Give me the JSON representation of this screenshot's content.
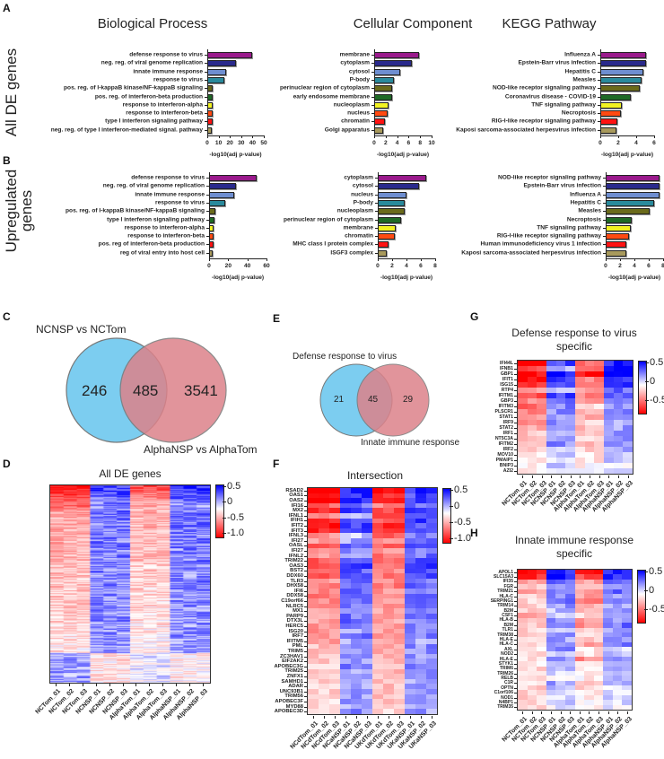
{
  "panels": {
    "A": "A",
    "B": "B",
    "C": "C",
    "D": "D",
    "E": "E",
    "F": "F",
    "G": "G",
    "H": "H"
  },
  "row_titles": {
    "all": "All DE genes",
    "up_line1": "Upregulated",
    "up_line2": "genes"
  },
  "column_titles": {
    "bp": "Biological Process",
    "cc": "Cellular Component",
    "kegg": "KEGG Pathway"
  },
  "colors": {
    "purple": "#9a1a8c",
    "navy": "#2a2a8c",
    "lightblue": "#6e8ed0",
    "teal": "#2a8a9c",
    "olive": "#6a6a1a",
    "green": "#1f6a26",
    "yellow": "#f2f222",
    "orange": "#ff4a12",
    "red": "#ff1212",
    "khaki": "#a89a5c",
    "venn_blue": "#7ccdf0",
    "venn_red": "#dc828a",
    "venn_overlap": "#9c6a80"
  },
  "chart_data": [
    {
      "id": "A-bp",
      "type": "bar",
      "orientation": "horizontal",
      "xlabel": "-log10(adj p-value)",
      "xlim": [
        0,
        50
      ],
      "ticks": [
        0,
        10,
        20,
        30,
        40,
        50
      ],
      "categories": [
        "defense response to virus",
        "neg. reg. of viral genome replication",
        "innate immune response",
        "response to virus",
        "pos. reg. of I-kappaB kinase/NF-kappaB signaling",
        "pos. reg. of interferon-beta production",
        "response to interferon-alpha",
        "response to interferon-beta",
        "type I interferon signaling pathway",
        "neg. reg. of type I interferon-mediated signal. pathway"
      ],
      "values": [
        40,
        25,
        17,
        15,
        5,
        5,
        5,
        5,
        5,
        4
      ]
    },
    {
      "id": "A-cc",
      "type": "bar",
      "orientation": "horizontal",
      "xlabel": "-log10(adj p-value)",
      "xlim": [
        0,
        10
      ],
      "ticks": [
        0,
        2,
        4,
        6,
        8,
        10
      ],
      "categories": [
        "membrane",
        "cytoplasm",
        "cytosol",
        "P-body",
        "perinuclear region of cytoplasm",
        "early endosome membrane",
        "nucleoplasm",
        "nucleus",
        "chromatin",
        "Golgi apparatus"
      ],
      "values": [
        7.8,
        6.5,
        4.6,
        3.4,
        3.2,
        3.1,
        2.5,
        2.4,
        1.9,
        1.6
      ]
    },
    {
      "id": "A-kegg",
      "type": "bar",
      "orientation": "horizontal",
      "xlabel": "-log10(adj p-value)",
      "xlim": [
        0,
        6
      ],
      "ticks": [
        0,
        2,
        4,
        6
      ],
      "categories": [
        "Influenza A",
        "Epstein-Barr virus infection",
        "Hepatitis C",
        "Measles",
        "NOD-like receptor signaling pathway",
        "Coronavirus disease - COVID-19",
        "TNF signaling pathway",
        "Necroptosis",
        "RIG-I-like receptor signaling pathway",
        "Kaposi sarcoma-associated herpesvirus infection"
      ],
      "values": [
        5.1,
        5.1,
        4.8,
        4.6,
        4.4,
        3.4,
        2.4,
        2.3,
        1.9,
        1.8
      ]
    },
    {
      "id": "B-bp",
      "type": "bar",
      "orientation": "horizontal",
      "xlabel": "-log10(adj p-value)",
      "xlim": [
        0,
        60
      ],
      "ticks": [
        0,
        20,
        40,
        60
      ],
      "categories": [
        "defense response to virus",
        "neg. reg. of viral genome replication",
        "innate immune response",
        "response to virus",
        "pos. reg. of I-kappaB kinase/NF-kappaB signaling",
        "type I interferon signaling pathway",
        "response to interferon-alpha",
        "response to interferon-beta",
        "pos. reg of interferon-beta production",
        "reg of viral entry into host cell"
      ],
      "values": [
        50,
        28,
        26,
        17,
        7,
        6,
        5,
        5,
        5,
        4
      ]
    },
    {
      "id": "B-cc",
      "type": "bar",
      "orientation": "horizontal",
      "xlabel": "-log10(adj p-value)",
      "xlim": [
        0,
        8
      ],
      "ticks": [
        0,
        2,
        4,
        6,
        8
      ],
      "categories": [
        "cytoplasm",
        "cytosol",
        "nucleus",
        "P-body",
        "nucleoplasm",
        "perinuclear region of cytoplasm",
        "membrane",
        "chromatin",
        "MHC class I protein complex",
        "ISGF3 complex"
      ],
      "values": [
        6.8,
        5.7,
        4.0,
        3.7,
        3.7,
        3.3,
        2.5,
        2.4,
        1.5,
        1.2
      ]
    },
    {
      "id": "B-kegg",
      "type": "bar",
      "orientation": "horizontal",
      "xlabel": "-log10(adj p-value)",
      "xlim": [
        0,
        8
      ],
      "ticks": [
        0,
        2,
        4,
        6,
        8
      ],
      "categories": [
        "NOD-like receptor signaling pathway",
        "Epstein-Barr virus infection",
        "Influenza A",
        "Hepatitis C",
        "Measles",
        "Necroptosis",
        "TNF signaling pathway",
        "RIG-I-like receptor signaling pathway",
        "Human immunodeficiency virus 1 infection",
        "Kaposi sarcoma-associated herpesvirus infection"
      ],
      "values": [
        7.5,
        7.5,
        7.5,
        6.7,
        6.1,
        3.6,
        3.5,
        3.3,
        2.9,
        2.9
      ]
    }
  ],
  "venn_c": {
    "left_label": "NCNSP vs NCTom",
    "right_label": "AlphaNSP vs AlphaTom",
    "left_only": "246",
    "overlap": "485",
    "right_only": "3541"
  },
  "venn_e": {
    "left_label": "Defense response to virus",
    "right_label": "Innate immune response",
    "left_only": "21",
    "overlap": "45",
    "right_only": "29"
  },
  "heatmaps": {
    "colorbar_labels": [
      "0.5",
      "0",
      "-0.5",
      "-1.0"
    ],
    "colorbar_labels_gh": [
      "0.5",
      "0",
      "-0.5"
    ],
    "D": {
      "title": "All DE genes",
      "n_genes": 731,
      "columns": [
        "NCTom_01",
        "NCTom_02",
        "NCTom_03",
        "NCNSP_01",
        "NCNSP_02",
        "NCNSP_03",
        "AlphaTom_01",
        "AlphaTom_02",
        "AlphaTom_03",
        "AlphaNSP_01",
        "AlphaNSP_02",
        "AlphaNSP_03"
      ]
    },
    "F": {
      "title": "Intersection",
      "columns": [
        "NCdTom_01",
        "NCdTom_02",
        "NCdTom_03",
        "NCaNSP_01",
        "NCaNSP_02",
        "NCaNSP_03",
        "UKdTom_01",
        "UKdTom_02",
        "UKdTom_03",
        "UKaNSP_01",
        "UKaNSP_02",
        "UKaNSP_03"
      ],
      "genes": [
        "RSAD2",
        "OAS1",
        "OAS2",
        "IFI16",
        "MX2",
        "IFNL1",
        "IFIH1",
        "IFIT2",
        "IFIT3",
        "IFNL3",
        "IFI27",
        "OASL",
        "IFI27",
        "IFNL2",
        "TRIM22",
        "OAS3",
        "BST2",
        "DDX60",
        "TLR3",
        "DHX58",
        "IFI6",
        "DDX58",
        "C19orf66",
        "NLRC5",
        "MX1",
        "PARP9",
        "DTX3L",
        "HERC5",
        "ISG20",
        "IRF7",
        "IFITM5",
        "PML",
        "TRIM5",
        "ZC3HAV1",
        "EIF2AK2",
        "APOBEC3G",
        "TRIM25",
        "ZNFX1",
        "SAMHD1",
        "ADAR",
        "UNC93B1",
        "TRIM56",
        "APOBEC3F",
        "MYD88",
        "APOBEC3D"
      ],
      "group_means": [
        [
          -0.95,
          0.5,
          -0.8,
          0.45
        ],
        [
          -0.8,
          0.45,
          -0.7,
          0.4
        ],
        [
          -0.9,
          0.5,
          -0.75,
          0.45
        ],
        [
          -0.5,
          0.3,
          -0.4,
          0.3
        ],
        [
          -0.7,
          0.4,
          -0.6,
          0.4
        ],
        [
          -0.4,
          0.15,
          -0.6,
          0.3
        ],
        [
          -0.7,
          0.4,
          -0.5,
          0.4
        ],
        [
          -0.8,
          0.4,
          -0.7,
          0.4
        ],
        [
          -0.75,
          0.4,
          -0.6,
          0.4
        ],
        [
          -0.35,
          0.1,
          -0.5,
          0.3
        ],
        [
          -0.3,
          0.2,
          -0.3,
          0.3
        ],
        [
          -0.6,
          0.4,
          -0.5,
          0.4
        ],
        [
          -0.3,
          0.25,
          -0.3,
          0.3
        ],
        [
          -0.3,
          0.15,
          -0.45,
          0.3
        ],
        [
          -0.55,
          0.4,
          -0.45,
          0.35
        ],
        [
          -0.6,
          0.4,
          -0.5,
          0.4
        ],
        [
          -0.5,
          0.35,
          -0.4,
          0.35
        ],
        [
          -0.55,
          0.4,
          -0.45,
          0.35
        ],
        [
          -0.35,
          0.3,
          -0.4,
          0.3
        ],
        [
          -0.45,
          0.35,
          -0.45,
          0.35
        ],
        [
          -0.4,
          0.3,
          -0.35,
          0.3
        ],
        [
          -0.45,
          0.35,
          -0.45,
          0.35
        ],
        [
          -0.4,
          0.3,
          -0.35,
          0.3
        ],
        [
          -0.45,
          0.3,
          -0.4,
          0.3
        ],
        [
          -0.3,
          0.3,
          -0.3,
          0.3
        ],
        [
          -0.3,
          0.3,
          -0.3,
          0.3
        ],
        [
          -0.3,
          0.3,
          -0.3,
          0.3
        ],
        [
          -0.35,
          0.3,
          -0.3,
          0.3
        ],
        [
          -0.35,
          0.2,
          -0.3,
          0.25
        ],
        [
          -0.35,
          0.3,
          -0.4,
          0.3
        ],
        [
          -0.3,
          0.2,
          -0.3,
          0.2
        ],
        [
          -0.2,
          0.25,
          -0.25,
          0.25
        ],
        [
          -0.2,
          0.25,
          -0.25,
          0.25
        ],
        [
          -0.2,
          0.2,
          -0.25,
          0.2
        ],
        [
          -0.2,
          0.2,
          -0.25,
          0.2
        ],
        [
          -0.15,
          0.3,
          -0.2,
          0.25
        ],
        [
          -0.2,
          0.2,
          -0.25,
          0.2
        ],
        [
          -0.2,
          0.2,
          -0.2,
          0.2
        ],
        [
          -0.15,
          0.2,
          -0.2,
          0.2
        ],
        [
          -0.15,
          0.2,
          -0.2,
          0.2
        ],
        [
          -0.15,
          0.2,
          -0.2,
          0.2
        ],
        [
          -0.15,
          0.2,
          -0.2,
          0.2
        ],
        [
          -0.1,
          0.2,
          -0.2,
          0.2
        ],
        [
          -0.1,
          0.2,
          -0.2,
          0.15
        ],
        [
          -0.1,
          0.25,
          -0.15,
          0.2
        ]
      ]
    },
    "G": {
      "title_line1": "Defense response to virus",
      "title_line2": "specific",
      "columns": [
        "NCTom_01",
        "NCTom_02",
        "NCTom_03",
        "NCNSP_01",
        "NCNSP_02",
        "NCNSP_03",
        "AlphaTom_01",
        "AlphaTom_02",
        "AlphaTom_03",
        "AlphaNSP_01",
        "AlphaNSP_02",
        "AlphaNSP_03"
      ],
      "genes": [
        "IFI44L",
        "IFNB1",
        "GBP1",
        "IFIT1",
        "ISG15",
        "RTP4",
        "IFITM1",
        "GBP3",
        "IFITM3",
        "PLSCR1",
        "STAT1",
        "IRF9",
        "STAT2",
        "IRF1",
        "NT5C3A",
        "IFITM2",
        "IRF2",
        "MOV10",
        "PMAIP1",
        "BNIP3",
        "AZI2"
      ],
      "group_means": [
        [
          -0.9,
          0.4,
          -0.5,
          0.5
        ],
        [
          -0.6,
          0.2,
          -0.5,
          0.6
        ],
        [
          -0.8,
          0.5,
          -0.8,
          0.6
        ],
        [
          -0.8,
          0.4,
          -0.4,
          0.4
        ],
        [
          -0.7,
          0.4,
          -0.4,
          0.4
        ],
        [
          -0.3,
          0.15,
          -0.3,
          0.3
        ],
        [
          -0.6,
          0.4,
          -0.4,
          0.4
        ],
        [
          -0.4,
          0.3,
          -0.3,
          0.3
        ],
        [
          -0.5,
          0.25,
          -0.05,
          0.25
        ],
        [
          -0.4,
          0.25,
          -0.2,
          0.25
        ],
        [
          -0.35,
          0.25,
          -0.25,
          0.25
        ],
        [
          -0.35,
          0.25,
          -0.1,
          0.2
        ],
        [
          -0.25,
          0.2,
          -0.2,
          0.2
        ],
        [
          -0.2,
          0.2,
          -0.15,
          0.2
        ],
        [
          -0.25,
          0.15,
          -0.15,
          0.2
        ],
        [
          -0.2,
          0.25,
          -0.25,
          0.2
        ],
        [
          -0.15,
          0.1,
          -0.15,
          0.15
        ],
        [
          -0.1,
          0.1,
          -0.1,
          0.15
        ],
        [
          -0.1,
          0.1,
          -0.1,
          0.15
        ],
        [
          -0.05,
          0.1,
          -0.05,
          0.05
        ],
        [
          -0.05,
          0.05,
          -0.05,
          0.1
        ]
      ]
    },
    "H": {
      "title_line1": "Innate immune response",
      "title_line2": "specific",
      "columns": [
        "NCTom_01",
        "NCTom_02",
        "NCTom_03",
        "NCNSP_01",
        "NCNSP_02",
        "NCNSP_03",
        "AlphaTom_01",
        "AlphaTom_02",
        "AlphaTom_03",
        "AlphaNSP_01",
        "AlphaNSP_02",
        "AlphaNSP_03"
      ],
      "genes": [
        "APOL1",
        "SLC15A3",
        "IFI35",
        "FGR",
        "TRIM21",
        "HLA-C",
        "SERPING1",
        "TRIM14",
        "B2M",
        "CSF1",
        "HLA-B",
        "B2M",
        "TLR1",
        "TRIM38",
        "HLA-E",
        "HLA-C",
        "AXL",
        "NOD2",
        "HLA-E",
        "STYK1",
        "TRIM6",
        "TRIM26",
        "RELB",
        "C1R",
        "OPTN",
        "C1orf106",
        "NOD1",
        "N4BP1",
        "TRIM35"
      ],
      "group_means": [
        [
          -0.8,
          0.5,
          -0.8,
          0.5
        ],
        [
          -0.7,
          0.5,
          -0.6,
          0.45
        ],
        [
          -0.3,
          0.3,
          -0.3,
          0.3
        ],
        [
          -0.2,
          0.25,
          -0.15,
          0.15
        ],
        [
          -0.3,
          0.3,
          -0.3,
          0.3
        ],
        [
          -0.15,
          0.25,
          -0.3,
          0.25
        ],
        [
          -0.15,
          0.3,
          -0.4,
          0.3
        ],
        [
          -0.15,
          0.2,
          -0.2,
          0.2
        ],
        [
          -0.15,
          0.15,
          -0.2,
          0.2
        ],
        [
          -0.35,
          0.15,
          -0.1,
          0.2
        ],
        [
          -0.15,
          0.25,
          -0.3,
          0.25
        ],
        [
          -0.15,
          0.25,
          -0.35,
          0.3
        ],
        [
          -0.15,
          0.15,
          -0.1,
          0.15
        ],
        [
          -0.2,
          0.2,
          -0.15,
          0.2
        ],
        [
          -0.1,
          0.2,
          -0.2,
          0.2
        ],
        [
          -0.1,
          0.25,
          -0.3,
          0.25
        ],
        [
          -0.1,
          0.25,
          -0.1,
          0.1
        ],
        [
          -0.15,
          0.15,
          -0.1,
          0.15
        ],
        [
          -0.1,
          0.2,
          -0.4,
          0.3
        ],
        [
          -0.05,
          0.15,
          -0.15,
          0.15
        ],
        [
          -0.15,
          0.15,
          -0.1,
          0.15
        ],
        [
          -0.1,
          0.1,
          -0.1,
          0.1
        ],
        [
          -0.15,
          0.05,
          -0.05,
          0.2
        ],
        [
          -0.1,
          0.2,
          -0.15,
          0.15
        ],
        [
          -0.15,
          0.1,
          -0.15,
          0.1
        ],
        [
          -0.15,
          0.1,
          -0.05,
          0.1
        ],
        [
          -0.15,
          0.1,
          -0.05,
          0.1
        ],
        [
          -0.15,
          0.1,
          -0.05,
          0.1
        ],
        [
          -0.1,
          0.05,
          -0.05,
          0.05
        ]
      ]
    }
  }
}
